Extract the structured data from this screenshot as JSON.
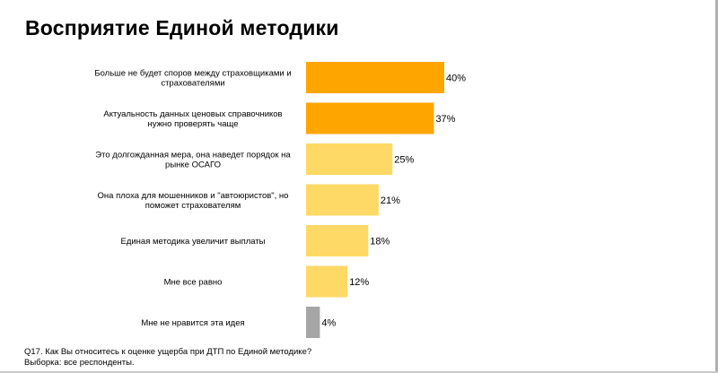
{
  "title": "Восприятие Единой методики",
  "colors": {
    "top": "#FFA500",
    "mid": "#FFD966",
    "low": "#A6A6A6"
  },
  "chart_data": {
    "type": "bar",
    "orientation": "horizontal",
    "categories": [
      [
        "Больше не будет споров между страховщиками и",
        "страхователями"
      ],
      [
        "Актуальность данных ценовых справочников",
        "нужно проверять  чаще"
      ],
      [
        "Это долгожданная мера, она наведет порядок на",
        "рынке ОСАГО"
      ],
      [
        "Она плоха для мошенников и \"автоюристов\", но",
        "поможет страхователям"
      ],
      [
        "Единая методика увеличит выплаты"
      ],
      [
        "Мне все равно"
      ],
      [
        "Мне не нравится эта идея"
      ]
    ],
    "values": [
      40,
      37,
      25,
      21,
      18,
      12,
      4
    ],
    "value_labels": [
      "40%",
      "37%",
      "25%",
      "21%",
      "18%",
      "12%",
      "4%"
    ],
    "bar_colors": [
      "top",
      "top",
      "mid",
      "mid",
      "mid",
      "mid",
      "low"
    ],
    "xlim": [
      0,
      40
    ],
    "grid": false,
    "legend": "none"
  },
  "footnote": {
    "line1": "Q17. Как Вы относитесь к оценке ущерба при ДТП по Единой методике?",
    "line2": "Выборка: все респонденты."
  }
}
